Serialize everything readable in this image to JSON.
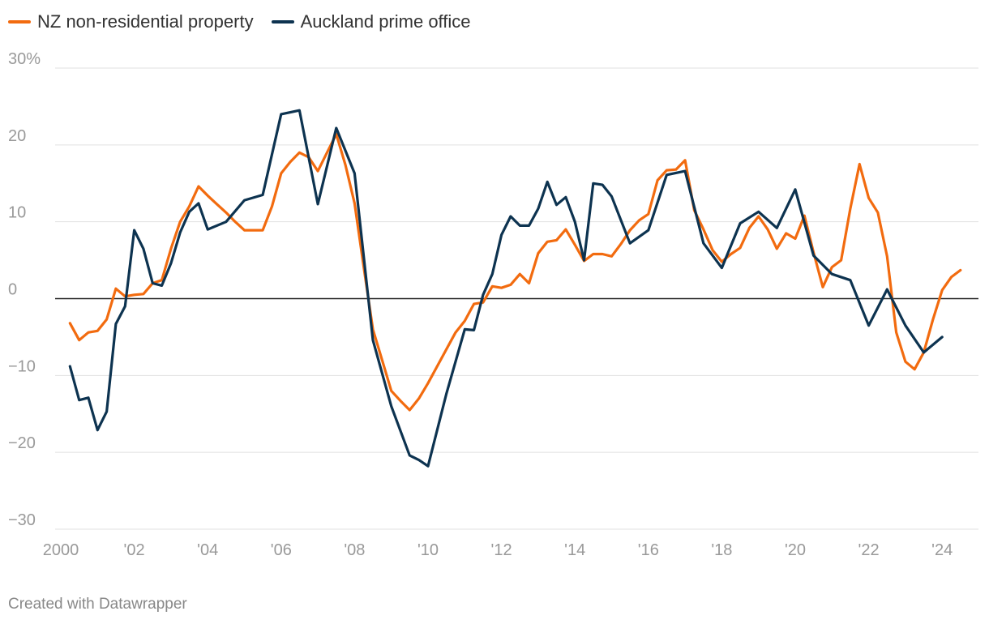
{
  "chart_data": {
    "type": "line",
    "title": "",
    "xlabel": "",
    "ylabel": "",
    "ylim": [
      -30,
      30
    ],
    "xlim": [
      2000,
      2024.9
    ],
    "yticks": [
      {
        "value": 30,
        "label": "30%"
      },
      {
        "value": 20,
        "label": "20"
      },
      {
        "value": 10,
        "label": "10"
      },
      {
        "value": 0,
        "label": "0"
      },
      {
        "value": -10,
        "label": "−10"
      },
      {
        "value": -20,
        "label": "−20"
      },
      {
        "value": -30,
        "label": "−30"
      }
    ],
    "xticks": [
      {
        "value": 2000,
        "label": "2000"
      },
      {
        "value": 2002,
        "label": "'02"
      },
      {
        "value": 2004,
        "label": "'04"
      },
      {
        "value": 2006,
        "label": "'06"
      },
      {
        "value": 2008,
        "label": "'08"
      },
      {
        "value": 2010,
        "label": "'10"
      },
      {
        "value": 2012,
        "label": "'12"
      },
      {
        "value": 2014,
        "label": "'14"
      },
      {
        "value": 2016,
        "label": "'16"
      },
      {
        "value": 2018,
        "label": "'18"
      },
      {
        "value": 2020,
        "label": "'20"
      },
      {
        "value": 2022,
        "label": "'22"
      },
      {
        "value": 2024,
        "label": "'24"
      }
    ],
    "series": [
      {
        "name": "NZ non-residential property",
        "color": "#f26b0f",
        "points": [
          [
            2000.25,
            -3.2
          ],
          [
            2000.5,
            -5.4
          ],
          [
            2000.75,
            -4.4
          ],
          [
            2001.0,
            -4.2
          ],
          [
            2001.25,
            -2.7
          ],
          [
            2001.5,
            1.3
          ],
          [
            2001.75,
            0.3
          ],
          [
            2002.0,
            0.5
          ],
          [
            2002.25,
            0.6
          ],
          [
            2002.5,
            2.0
          ],
          [
            2002.75,
            2.4
          ],
          [
            2003.0,
            6.5
          ],
          [
            2003.25,
            10.0
          ],
          [
            2003.5,
            12.0
          ],
          [
            2003.75,
            14.6
          ],
          [
            2004.0,
            13.4
          ],
          [
            2004.25,
            12.3
          ],
          [
            2004.5,
            11.2
          ],
          [
            2004.75,
            10.0
          ],
          [
            2005.0,
            8.9
          ],
          [
            2005.25,
            8.9
          ],
          [
            2005.5,
            8.9
          ],
          [
            2005.75,
            12.0
          ],
          [
            2006.0,
            16.3
          ],
          [
            2006.25,
            17.8
          ],
          [
            2006.5,
            19.0
          ],
          [
            2006.75,
            18.4
          ],
          [
            2007.0,
            16.6
          ],
          [
            2007.25,
            19.0
          ],
          [
            2007.5,
            21.4
          ],
          [
            2007.75,
            17.4
          ],
          [
            2008.0,
            12.4
          ],
          [
            2008.25,
            4.1
          ],
          [
            2008.5,
            -4.0
          ],
          [
            2008.75,
            -8.0
          ],
          [
            2009.0,
            -12.0
          ],
          [
            2009.25,
            -13.3
          ],
          [
            2009.5,
            -14.5
          ],
          [
            2009.75,
            -13.0
          ],
          [
            2010.0,
            -11.0
          ],
          [
            2010.25,
            -8.8
          ],
          [
            2010.5,
            -6.6
          ],
          [
            2010.75,
            -4.4
          ],
          [
            2011.0,
            -2.9
          ],
          [
            2011.25,
            -0.7
          ],
          [
            2011.5,
            -0.5
          ],
          [
            2011.75,
            1.6
          ],
          [
            2012.0,
            1.4
          ],
          [
            2012.25,
            1.8
          ],
          [
            2012.5,
            3.2
          ],
          [
            2012.75,
            2.0
          ],
          [
            2013.0,
            5.9
          ],
          [
            2013.25,
            7.4
          ],
          [
            2013.5,
            7.6
          ],
          [
            2013.75,
            9.0
          ],
          [
            2014.0,
            7.0
          ],
          [
            2014.25,
            4.9
          ],
          [
            2014.5,
            5.8
          ],
          [
            2014.75,
            5.8
          ],
          [
            2015.0,
            5.5
          ],
          [
            2015.25,
            7.1
          ],
          [
            2015.5,
            8.9
          ],
          [
            2015.75,
            10.2
          ],
          [
            2016.0,
            11.0
          ],
          [
            2016.25,
            15.4
          ],
          [
            2016.5,
            16.7
          ],
          [
            2016.75,
            16.8
          ],
          [
            2017.0,
            18.0
          ],
          [
            2017.25,
            11.5
          ],
          [
            2017.5,
            9.0
          ],
          [
            2017.75,
            6.3
          ],
          [
            2018.0,
            4.8
          ],
          [
            2018.25,
            5.8
          ],
          [
            2018.5,
            6.6
          ],
          [
            2018.75,
            9.2
          ],
          [
            2019.0,
            10.7
          ],
          [
            2019.25,
            9.0
          ],
          [
            2019.5,
            6.5
          ],
          [
            2019.75,
            8.5
          ],
          [
            2020.0,
            7.8
          ],
          [
            2020.25,
            10.8
          ],
          [
            2020.5,
            6.0
          ],
          [
            2020.75,
            1.5
          ],
          [
            2021.0,
            4.1
          ],
          [
            2021.25,
            5.0
          ],
          [
            2021.5,
            11.7
          ],
          [
            2021.75,
            17.5
          ],
          [
            2022.0,
            13.1
          ],
          [
            2022.25,
            11.2
          ],
          [
            2022.5,
            5.5
          ],
          [
            2022.75,
            -4.4
          ],
          [
            2023.0,
            -8.2
          ],
          [
            2023.25,
            -9.2
          ],
          [
            2023.5,
            -7.0
          ],
          [
            2023.75,
            -2.7
          ],
          [
            2024.0,
            1.1
          ],
          [
            2024.25,
            2.8
          ],
          [
            2024.5,
            3.7
          ]
        ]
      },
      {
        "name": "Auckland prime office",
        "color": "#0d3350",
        "points": [
          [
            2000.25,
            -8.8
          ],
          [
            2000.5,
            -13.2
          ],
          [
            2000.75,
            -12.9
          ],
          [
            2001.0,
            -17.1
          ],
          [
            2001.25,
            -14.7
          ],
          [
            2001.5,
            -3.3
          ],
          [
            2001.75,
            -1.0
          ],
          [
            2002.0,
            8.9
          ],
          [
            2002.25,
            6.5
          ],
          [
            2002.5,
            2.0
          ],
          [
            2002.75,
            1.7
          ],
          [
            2003.0,
            4.6
          ],
          [
            2003.25,
            8.6
          ],
          [
            2003.5,
            11.3
          ],
          [
            2003.75,
            12.4
          ],
          [
            2004.0,
            9.0
          ],
          [
            2004.5,
            10.0
          ],
          [
            2005.0,
            12.8
          ],
          [
            2005.5,
            13.5
          ],
          [
            2006.0,
            24.0
          ],
          [
            2006.5,
            24.5
          ],
          [
            2007.0,
            12.3
          ],
          [
            2007.5,
            22.2
          ],
          [
            2008.0,
            16.3
          ],
          [
            2008.5,
            -5.4
          ],
          [
            2009.0,
            -14.0
          ],
          [
            2009.5,
            -20.4
          ],
          [
            2009.75,
            -21.0
          ],
          [
            2010.0,
            -21.8
          ],
          [
            2010.5,
            -12.4
          ],
          [
            2011.0,
            -4.0
          ],
          [
            2011.25,
            -4.1
          ],
          [
            2011.5,
            0.5
          ],
          [
            2011.75,
            3.2
          ],
          [
            2012.0,
            8.3
          ],
          [
            2012.25,
            10.7
          ],
          [
            2012.5,
            9.5
          ],
          [
            2012.75,
            9.5
          ],
          [
            2013.0,
            11.7
          ],
          [
            2013.25,
            15.2
          ],
          [
            2013.5,
            12.2
          ],
          [
            2013.75,
            13.2
          ],
          [
            2014.0,
            10.0
          ],
          [
            2014.25,
            5.0
          ],
          [
            2014.5,
            15.0
          ],
          [
            2014.75,
            14.8
          ],
          [
            2015.0,
            13.3
          ],
          [
            2015.5,
            7.2
          ],
          [
            2016.0,
            8.9
          ],
          [
            2016.5,
            16.1
          ],
          [
            2017.0,
            16.6
          ],
          [
            2017.5,
            7.2
          ],
          [
            2018.0,
            4.0
          ],
          [
            2018.5,
            9.8
          ],
          [
            2019.0,
            11.3
          ],
          [
            2019.5,
            9.2
          ],
          [
            2020.0,
            14.2
          ],
          [
            2020.5,
            5.6
          ],
          [
            2021.0,
            3.2
          ],
          [
            2021.5,
            2.4
          ],
          [
            2022.0,
            -3.5
          ],
          [
            2022.5,
            1.2
          ],
          [
            2023.0,
            -3.5
          ],
          [
            2023.5,
            -7.0
          ],
          [
            2024.0,
            -5.0
          ]
        ]
      }
    ]
  },
  "legend": {
    "items": [
      {
        "label": "NZ non-residential property",
        "color": "#f26b0f"
      },
      {
        "label": "Auckland prime office",
        "color": "#0d3350"
      }
    ]
  },
  "footer": {
    "credit": "Created with Datawrapper"
  }
}
